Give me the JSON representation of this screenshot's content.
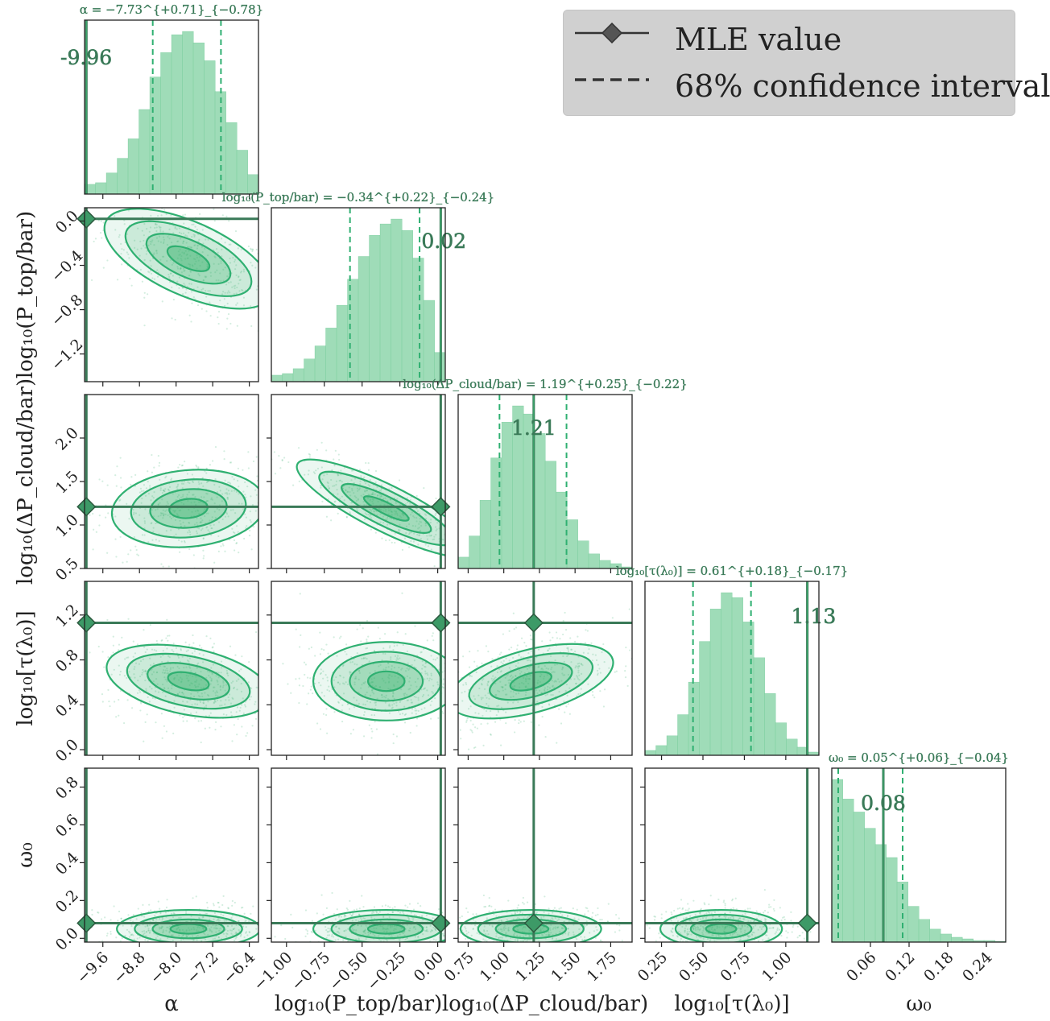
{
  "legend": {
    "entries": [
      {
        "label": "MLE value",
        "style": "solid-diamond"
      },
      {
        "label": "68% confidence interval",
        "style": "dashed"
      }
    ]
  },
  "colors": {
    "fill": "#3cb371",
    "fill_light": "#9fdcb8",
    "contour": "#2fb071",
    "mle": "#3a7a58",
    "frame": "#222222",
    "legend_bg": "#d0d0d0"
  },
  "chart_data": {
    "type": "corner",
    "parameters": [
      {
        "key": "alpha",
        "label": "α",
        "title": "α = −7.73^{+0.71}_{−0.78}",
        "median": -7.73,
        "q16": -8.51,
        "q84": -7.02,
        "mle": -9.96,
        "mle_label": "-9.96",
        "range": [
          -10.0,
          -6.2
        ],
        "ticks": [
          -9.6,
          -8.8,
          -8.0,
          -7.2,
          -6.4
        ],
        "tick_labels": [
          "−9.6",
          "−8.8",
          "−8.0",
          "−7.2",
          "−6.4"
        ],
        "hist": [
          0.06,
          0.07,
          0.13,
          0.22,
          0.34,
          0.52,
          0.72,
          0.87,
          0.98,
          1.0,
          0.93,
          0.82,
          0.63,
          0.44,
          0.27,
          0.12
        ]
      },
      {
        "key": "ptop",
        "label": "log₁₀(P_top/bar)",
        "title": "log₁₀(P_top/bar) = −0.34^{+0.22}_{−0.24}",
        "median": -0.34,
        "q16": -0.58,
        "q84": -0.12,
        "mle": 0.02,
        "mle_label": "0.02",
        "range": [
          -1.1,
          0.05
        ],
        "ticks": [
          -1.0,
          -0.75,
          -0.5,
          -0.25,
          0.0
        ],
        "tick_labels": [
          "−1.00",
          "−0.75",
          "−0.50",
          "−0.25",
          "0.00"
        ],
        "tick_labels_y": [
          "0.0",
          "−0.4",
          "−0.8",
          "−1.2"
        ],
        "ticks_y": [
          0.0,
          -0.4,
          -0.8,
          -1.2
        ],
        "range_y": [
          -1.45,
          0.12
        ],
        "hist": [
          0.04,
          0.05,
          0.08,
          0.14,
          0.22,
          0.33,
          0.47,
          0.63,
          0.77,
          0.9,
          0.97,
          1.0,
          0.93,
          0.76,
          0.5,
          0.18
        ]
      },
      {
        "key": "dpcloud",
        "label": "log₁₀(ΔP_cloud/bar)",
        "title": "log₁₀(ΔP_cloud/bar) = 1.19^{+0.25}_{−0.22}",
        "median": 1.19,
        "q16": 0.97,
        "q84": 1.44,
        "mle": 1.21,
        "mle_label": "1.21",
        "range": [
          0.68,
          1.9
        ],
        "ticks": [
          0.75,
          1.0,
          1.25,
          1.5,
          1.75
        ],
        "tick_labels": [
          "0.75",
          "1.00",
          "1.25",
          "1.50",
          "1.75"
        ],
        "tick_labels_y": [
          "2.0",
          "1.5",
          "1.0",
          "0.5"
        ],
        "ticks_y": [
          2.0,
          1.5,
          1.0,
          0.5
        ],
        "range_y": [
          0.5,
          2.5
        ],
        "hist": [
          0.07,
          0.2,
          0.42,
          0.68,
          0.9,
          1.0,
          0.95,
          0.83,
          0.66,
          0.47,
          0.3,
          0.17,
          0.09,
          0.05,
          0.03,
          0.01
        ]
      },
      {
        "key": "tau",
        "label": "log₁₀[τ(λ₀)]",
        "title": "log₁₀[τ(λ₀)] = 0.61^{+0.18}_{−0.17}",
        "median": 0.61,
        "q16": 0.44,
        "q84": 0.79,
        "mle": 1.13,
        "mle_label": "1.13",
        "range": [
          0.15,
          1.2
        ],
        "ticks": [
          0.25,
          0.5,
          0.75,
          1.0
        ],
        "tick_labels": [
          "0.25",
          "0.50",
          "0.75",
          "1.00"
        ],
        "tick_labels_y": [
          "1.2",
          "0.8",
          "0.4",
          "0.0"
        ],
        "ticks_y": [
          1.2,
          0.8,
          0.4,
          0.0
        ],
        "range_y": [
          -0.05,
          1.5
        ],
        "hist": [
          0.03,
          0.06,
          0.12,
          0.25,
          0.45,
          0.7,
          0.9,
          1.0,
          0.97,
          0.82,
          0.6,
          0.38,
          0.2,
          0.1,
          0.05,
          0.02
        ]
      },
      {
        "key": "omega",
        "label": "ω₀",
        "title": "ω₀ = 0.05^{+0.06}_{−0.04}",
        "median": 0.05,
        "q16": 0.01,
        "q84": 0.11,
        "mle": 0.08,
        "mle_label": "0.08",
        "range": [
          0.0,
          0.27
        ],
        "ticks": [
          0.06,
          0.12,
          0.18,
          0.24
        ],
        "tick_labels": [
          "0.06",
          "0.12",
          "0.18",
          "0.24"
        ],
        "tick_labels_y": [
          "0.8",
          "0.6",
          "0.4",
          "0.2",
          "0.0"
        ],
        "ticks_y": [
          0.8,
          0.6,
          0.4,
          0.2,
          0.0
        ],
        "range_y": [
          -0.02,
          0.9
        ],
        "hist": [
          1.0,
          0.88,
          0.8,
          0.7,
          0.6,
          0.52,
          0.37,
          0.22,
          0.14,
          0.08,
          0.05,
          0.03,
          0.02,
          0.01,
          0.01,
          0.005
        ]
      }
    ]
  }
}
